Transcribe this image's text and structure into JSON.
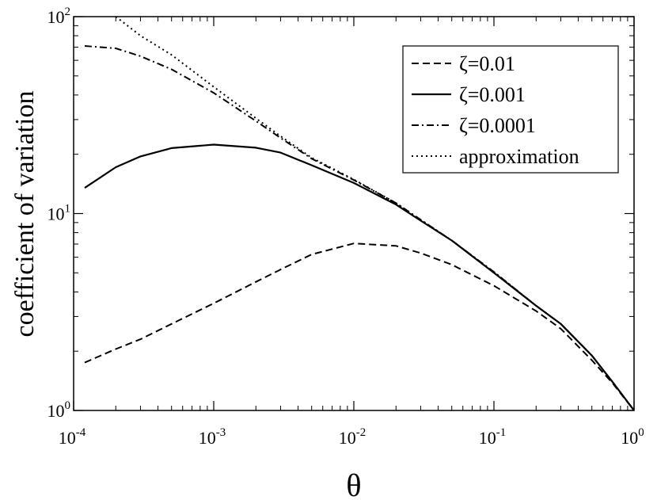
{
  "chart_data": {
    "type": "line",
    "title": "",
    "xlabel": "θ",
    "ylabel": "coefficient of variation",
    "xscale": "log",
    "yscale": "log",
    "xlim": [
      0.0001,
      1
    ],
    "ylim": [
      1,
      100
    ],
    "x_ticks": [
      {
        "value": 0.0001,
        "base": "10",
        "exp": "-4"
      },
      {
        "value": 0.001,
        "base": "10",
        "exp": "-3"
      },
      {
        "value": 0.01,
        "base": "10",
        "exp": "-2"
      },
      {
        "value": 0.1,
        "base": "10",
        "exp": "-1"
      },
      {
        "value": 1,
        "base": "10",
        "exp": "0"
      }
    ],
    "y_ticks": [
      {
        "value": 1,
        "base": "10",
        "exp": "0"
      },
      {
        "value": 10,
        "base": "10",
        "exp": "1"
      },
      {
        "value": 100,
        "base": "10",
        "exp": "2"
      }
    ],
    "grid": false,
    "legend_position": "top-right",
    "series": [
      {
        "name": "ζ=0.01",
        "dash": "dashed",
        "x": [
          0.00012,
          0.0002,
          0.0003,
          0.0005,
          0.001,
          0.002,
          0.003,
          0.005,
          0.01,
          0.02,
          0.03,
          0.05,
          0.1,
          0.2,
          0.3,
          0.5,
          0.7,
          1.0
        ],
        "y": [
          1.75,
          2.05,
          2.3,
          2.75,
          3.5,
          4.5,
          5.2,
          6.2,
          7.05,
          6.85,
          6.3,
          5.5,
          4.3,
          3.2,
          2.6,
          1.8,
          1.38,
          1.0
        ]
      },
      {
        "name": "ζ=0.001",
        "dash": "solid",
        "x": [
          0.00012,
          0.0002,
          0.0003,
          0.0005,
          0.001,
          0.002,
          0.003,
          0.005,
          0.01,
          0.02,
          0.03,
          0.05,
          0.1,
          0.2,
          0.3,
          0.5,
          0.7,
          1.0
        ],
        "y": [
          13.5,
          17.2,
          19.5,
          21.5,
          22.4,
          21.6,
          20.4,
          17.6,
          14.3,
          11.1,
          9.2,
          7.3,
          5.0,
          3.4,
          2.75,
          1.9,
          1.4,
          1.0
        ]
      },
      {
        "name": "ζ=0.0001",
        "dash": "dashdot",
        "x": [
          0.00012,
          0.0002,
          0.0003,
          0.0005,
          0.001,
          0.002,
          0.003,
          0.005,
          0.01,
          0.02,
          0.03,
          0.05,
          0.1,
          0.2,
          0.3,
          0.5,
          0.7,
          1.0
        ],
        "y": [
          71,
          69,
          63,
          54,
          41,
          29.5,
          24.2,
          19.0,
          14.8,
          11.3,
          9.3,
          7.3,
          5.05,
          3.4,
          2.75,
          1.9,
          1.4,
          1.0
        ]
      },
      {
        "name": "approximation",
        "dash": "dotted",
        "x": [
          0.0002,
          0.0003,
          0.0005,
          0.001,
          0.002,
          0.003,
          0.005,
          0.01,
          0.02,
          0.03,
          0.05,
          0.1,
          0.2,
          0.3,
          0.5,
          0.7,
          1.0
        ],
        "y": [
          100,
          80,
          64,
          44,
          30.5,
          24.7,
          19.2,
          14.9,
          11.3,
          9.3,
          7.3,
          5.05,
          3.4,
          2.75,
          1.9,
          1.4,
          1.0
        ]
      }
    ]
  }
}
